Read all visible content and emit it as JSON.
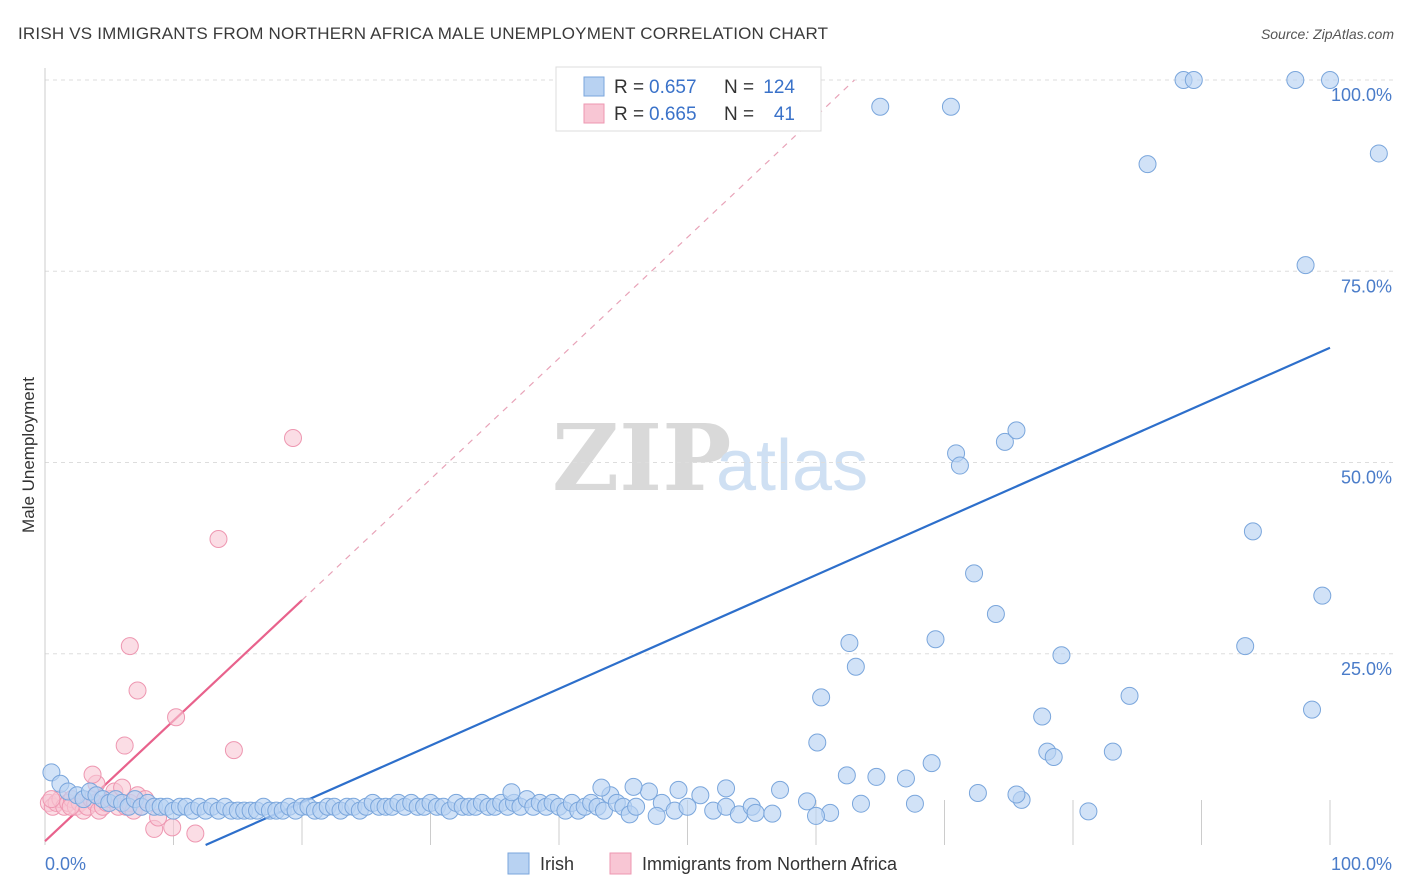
{
  "title": "IRISH VS IMMIGRANTS FROM NORTHERN AFRICA MALE UNEMPLOYMENT CORRELATION CHART",
  "source": "Source: ZipAtlas.com",
  "watermark": {
    "zip": "ZIP",
    "atlas": "atlas"
  },
  "legend_top": {
    "rows": [
      {
        "r_label": "R = ",
        "r_value": "0.657",
        "n_label": "N = ",
        "n_value": "124"
      },
      {
        "r_label": "R = ",
        "r_value": "0.665",
        "n_label": "N = ",
        "n_value": "41"
      }
    ]
  },
  "legend_bottom": [
    "Irish",
    "Immigrants from Northern Africa"
  ],
  "colors": {
    "irish_fill": "#b8d2f2",
    "irish_stroke": "#7aa6dc",
    "irish_line": "#2d6fcb",
    "nafrica_fill": "#f8c6d4",
    "nafrica_stroke": "#ee97b1",
    "nafrica_line": "#e8628c",
    "grid": "#dddddd",
    "tick_text": "#4a7cc9"
  },
  "chart_data": {
    "type": "scatter",
    "title": "IRISH VS IMMIGRANTS FROM NORTHERN AFRICA MALE UNEMPLOYMENT CORRELATION CHART",
    "xlabel": "",
    "ylabel": "Male Unemployment",
    "xlim": [
      0,
      100
    ],
    "ylim": [
      0,
      100
    ],
    "x_tick_labels": [
      "0.0%",
      "100.0%"
    ],
    "y_tick_labels": [
      "25.0%",
      "50.0%",
      "75.0%",
      "100.0%"
    ],
    "y_ticks": [
      25,
      50,
      75,
      100
    ],
    "grid": true,
    "legend_position": "top-center",
    "series": [
      {
        "name": "Irish",
        "R": 0.657,
        "N": 124,
        "trendline": {
          "x": [
            12.5,
            100
          ],
          "y": [
            0,
            65
          ]
        },
        "points": [
          [
            0.5,
            9.5
          ],
          [
            1.2,
            8
          ],
          [
            1.8,
            7
          ],
          [
            2.5,
            6.5
          ],
          [
            3,
            6
          ],
          [
            3.5,
            7
          ],
          [
            4,
            6.5
          ],
          [
            4.5,
            6
          ],
          [
            5,
            5.5
          ],
          [
            5.5,
            6
          ],
          [
            6,
            5.5
          ],
          [
            6.5,
            5
          ],
          [
            7,
            6
          ],
          [
            7.5,
            5
          ],
          [
            8,
            5.5
          ],
          [
            8.5,
            5
          ],
          [
            9,
            5
          ],
          [
            9.5,
            5
          ],
          [
            10,
            4.5
          ],
          [
            10.5,
            5
          ],
          [
            11,
            5
          ],
          [
            11.5,
            4.5
          ],
          [
            12,
            5
          ],
          [
            12.5,
            4.5
          ],
          [
            13,
            5
          ],
          [
            13.5,
            4.5
          ],
          [
            14,
            5
          ],
          [
            14.5,
            4.5
          ],
          [
            15,
            4.5
          ],
          [
            15.5,
            4.5
          ],
          [
            16,
            4.5
          ],
          [
            16.5,
            4.5
          ],
          [
            17,
            5
          ],
          [
            17.5,
            4.5
          ],
          [
            18,
            4.5
          ],
          [
            18.5,
            4.5
          ],
          [
            19,
            5
          ],
          [
            19.5,
            4.5
          ],
          [
            20,
            5
          ],
          [
            20.5,
            5
          ],
          [
            21,
            4.5
          ],
          [
            21.5,
            4.5
          ],
          [
            22,
            5
          ],
          [
            22.5,
            5
          ],
          [
            23,
            4.5
          ],
          [
            23.5,
            5
          ],
          [
            24,
            5
          ],
          [
            24.5,
            4.5
          ],
          [
            25,
            5
          ],
          [
            25.5,
            5.5
          ],
          [
            26,
            5
          ],
          [
            26.5,
            5
          ],
          [
            27,
            5
          ],
          [
            27.5,
            5.5
          ],
          [
            28,
            5
          ],
          [
            28.5,
            5.5
          ],
          [
            29,
            5
          ],
          [
            29.5,
            5
          ],
          [
            30,
            5.5
          ],
          [
            30.5,
            5
          ],
          [
            31,
            5
          ],
          [
            31.5,
            4.5
          ],
          [
            32,
            5.5
          ],
          [
            32.5,
            5
          ],
          [
            33,
            5
          ],
          [
            33.5,
            5
          ],
          [
            34,
            5.5
          ],
          [
            34.5,
            5
          ],
          [
            35,
            5
          ],
          [
            35.5,
            5.5
          ],
          [
            36,
            5
          ],
          [
            36.5,
            5.5
          ],
          [
            37,
            5
          ],
          [
            37.5,
            6
          ],
          [
            38,
            5
          ],
          [
            38.5,
            5.5
          ],
          [
            39,
            5
          ],
          [
            39.5,
            5.5
          ],
          [
            40,
            5
          ],
          [
            40.5,
            4.5
          ],
          [
            41,
            5.5
          ],
          [
            41.5,
            4.5
          ],
          [
            42,
            5
          ],
          [
            42.5,
            5.5
          ],
          [
            43,
            5
          ],
          [
            43.5,
            4.5
          ],
          [
            44,
            6.5
          ],
          [
            44.5,
            5.5
          ],
          [
            45,
            5
          ],
          [
            45.5,
            4
          ],
          [
            46,
            5
          ],
          [
            47,
            7
          ],
          [
            48,
            5.5
          ],
          [
            49,
            4.5
          ],
          [
            50,
            5
          ],
          [
            51,
            6.5
          ],
          [
            52,
            4.5
          ],
          [
            53,
            5
          ],
          [
            54,
            4
          ],
          [
            55,
            5
          ],
          [
            36.3,
            6.9
          ],
          [
            43.3,
            7.5
          ],
          [
            45.8,
            7.6
          ],
          [
            49.3,
            7.2
          ],
          [
            53,
            7.4
          ],
          [
            57.2,
            7.2
          ],
          [
            47.6,
            3.8
          ],
          [
            55.3,
            4.2
          ],
          [
            61.1,
            4.2
          ],
          [
            60,
            3.8
          ],
          [
            81.2,
            4.4
          ],
          [
            56.6,
            4.1
          ],
          [
            59.3,
            5.7
          ],
          [
            63.5,
            5.4
          ],
          [
            67.7,
            5.4
          ],
          [
            76,
            5.9
          ],
          [
            75.6,
            6.6
          ],
          [
            72.6,
            6.8
          ],
          [
            62.6,
            26.4
          ],
          [
            60.4,
            19.3
          ],
          [
            60.1,
            13.4
          ],
          [
            63.1,
            23.3
          ],
          [
            64.7,
            8.9
          ],
          [
            62.4,
            9.1
          ],
          [
            67,
            8.7
          ],
          [
            69,
            10.7
          ],
          [
            69.3,
            26.9
          ],
          [
            70.9,
            51.2
          ],
          [
            71.2,
            49.6
          ],
          [
            72.3,
            35.5
          ],
          [
            74,
            30.2
          ],
          [
            74.7,
            52.7
          ],
          [
            75.6,
            54.2
          ],
          [
            77.6,
            16.8
          ],
          [
            78,
            12.2
          ],
          [
            78.5,
            11.5
          ],
          [
            79.1,
            24.8
          ],
          [
            83.1,
            12.2
          ],
          [
            84.4,
            19.5
          ],
          [
            85.8,
            89
          ],
          [
            88.6,
            100
          ],
          [
            89.4,
            100
          ],
          [
            93.4,
            26
          ],
          [
            94,
            41
          ],
          [
            97.3,
            100
          ],
          [
            98.1,
            75.8
          ],
          [
            98.6,
            17.7
          ],
          [
            99.4,
            32.6
          ],
          [
            100,
            100
          ],
          [
            103.8,
            90.4
          ],
          [
            65,
            96.5
          ],
          [
            70.5,
            96.5
          ]
        ]
      },
      {
        "name": "Immigrants from Northern Africa",
        "R": 0.665,
        "N": 41,
        "trendline": {
          "x": [
            0,
            20
          ],
          "y": [
            0.5,
            32
          ]
        },
        "trendline_extension": {
          "x": [
            20,
            63
          ],
          "y": [
            32,
            100
          ]
        },
        "points": [
          [
            0.3,
            5.5
          ],
          [
            0.6,
            5
          ],
          [
            0.9,
            5.5
          ],
          [
            1.2,
            6
          ],
          [
            1.5,
            5
          ],
          [
            1.8,
            5.5
          ],
          [
            2.1,
            6
          ],
          [
            2.4,
            5
          ],
          [
            2.7,
            5.5
          ],
          [
            3,
            4.5
          ],
          [
            3.3,
            5
          ],
          [
            3.6,
            6
          ],
          [
            3.9,
            5.5
          ],
          [
            4.2,
            4.5
          ],
          [
            4.5,
            5
          ],
          [
            4.8,
            5.5
          ],
          [
            5.1,
            6
          ],
          [
            5.4,
            7
          ],
          [
            5.7,
            5
          ],
          [
            6,
            7.5
          ],
          [
            6.3,
            5
          ],
          [
            6.6,
            5.5
          ],
          [
            6.9,
            4.5
          ],
          [
            7.2,
            6.5
          ],
          [
            7.5,
            5
          ],
          [
            7.8,
            6
          ],
          [
            0.5,
            6
          ],
          [
            2,
            5
          ],
          [
            4,
            8
          ],
          [
            3.7,
            9.2
          ],
          [
            8.5,
            2.1
          ],
          [
            6.2,
            13
          ],
          [
            6.6,
            26
          ],
          [
            7.2,
            20.2
          ],
          [
            9.9,
            2.3
          ],
          [
            10.2,
            16.7
          ],
          [
            11.7,
            1.5
          ],
          [
            13.5,
            40
          ],
          [
            14.7,
            12.4
          ],
          [
            19.3,
            53.2
          ],
          [
            8.8,
            3.6
          ]
        ]
      }
    ]
  }
}
